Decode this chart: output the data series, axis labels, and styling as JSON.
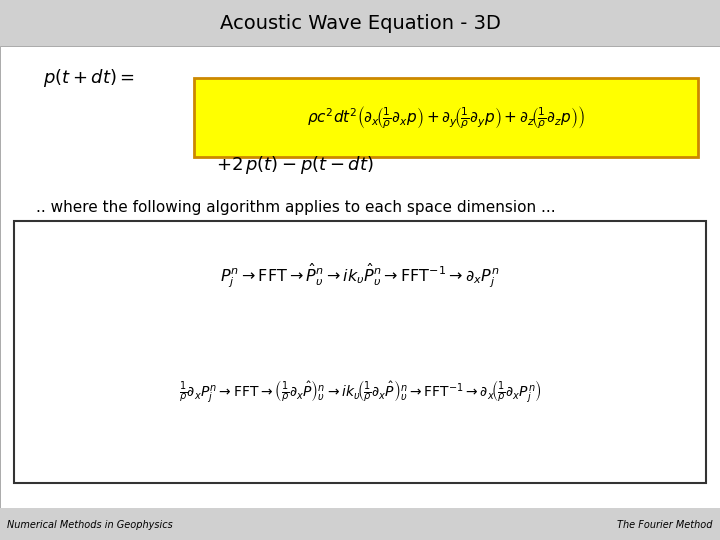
{
  "title": "Acoustic Wave Equation - 3D",
  "bg_color": "#ffffff",
  "header_bg": "#d0d0d0",
  "header_text_color": "#000000",
  "footer_bg": "#d0d0d0",
  "footer_left": "Numerical Methods in Geophysics",
  "footer_right": "The Fourier Method",
  "text_color": "#000000",
  "yellow_box_color": "#ffff00",
  "yellow_box_border": "#cc8800",
  "algo_box_border": "#333333",
  "eq1_line1": "$p(t + dt) =$",
  "eq1_line2": "$\\rho c^2 dt^2 \\left( \\partial_x \\left( \\frac{1}{\\rho} \\partial_x p \\right) + \\partial_y \\left( \\frac{1}{\\rho} \\partial_y p \\right) + \\partial_z \\left( \\frac{1}{\\rho} \\partial_z p \\right) \\right)$",
  "eq1_line3": "$+ 2\\,p(t) - p(t - dt)$",
  "where_text": ".. where the following algorithm applies to each space dimension ...",
  "algo_line1": "$P_j^n \\rightarrow \\mathrm{FFT} \\rightarrow \\hat{P}_\\upsilon^n \\rightarrow i k_\\upsilon \\hat{P}_\\upsilon^n \\rightarrow \\mathrm{FFT}^{-1} \\rightarrow \\partial_x P_j^n$",
  "algo_line2": "$\\frac{1}{\\rho} \\partial_x P_j^n \\rightarrow \\mathrm{FFT} \\rightarrow \\left( \\frac{1}{\\rho} \\partial_x \\hat{P} \\right)_\\upsilon^n \\rightarrow i k_\\upsilon \\left( \\frac{1}{\\rho} \\partial_x \\hat{P} \\right)_\\upsilon^n \\rightarrow \\mathrm{FFT}^{-1} \\rightarrow \\partial_x \\left( \\frac{1}{\\rho} \\partial_x P_j^n \\right)$"
}
